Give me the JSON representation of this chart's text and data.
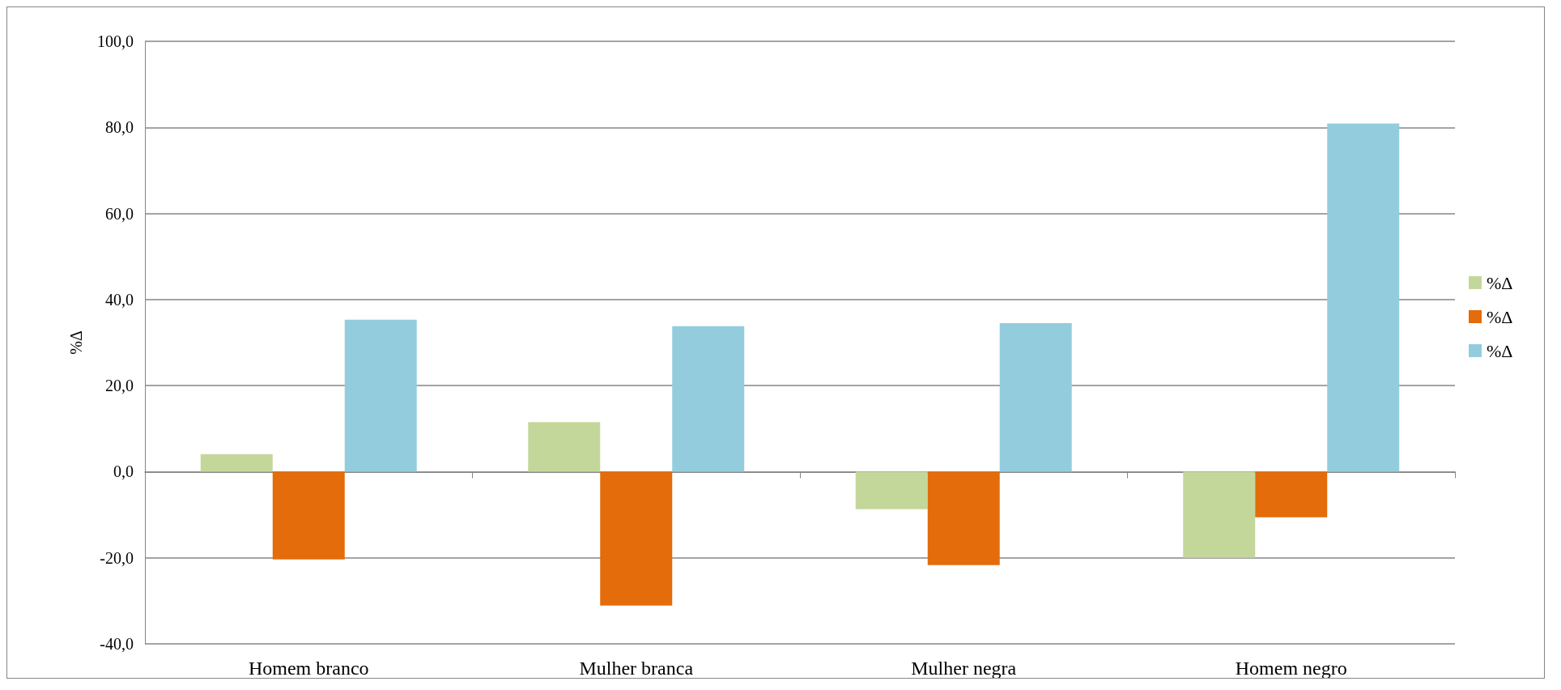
{
  "chart_data": {
    "type": "bar",
    "ylabel": "%Δ",
    "categories": [
      "Homem branco",
      "Mulher branca",
      "Mulher negra",
      "Homem negro"
    ],
    "series": [
      {
        "name": "%Δ",
        "color": "#c4d79b",
        "values": [
          4.1,
          11.5,
          -8.7,
          -20.0
        ]
      },
      {
        "name": "%Δ",
        "color": "#e46c0a",
        "values": [
          -20.4,
          -31.1,
          -21.7,
          -10.6
        ]
      },
      {
        "name": "%Δ",
        "color": "#93cddd",
        "values": [
          35.3,
          33.8,
          34.5,
          80.9
        ]
      }
    ],
    "ylim": [
      -40,
      100
    ],
    "yticks": [
      {
        "value": -40,
        "label": "-40,0"
      },
      {
        "value": -20,
        "label": "-20,0"
      },
      {
        "value": 0,
        "label": "0,0"
      },
      {
        "value": 20,
        "label": "20,0"
      },
      {
        "value": 40,
        "label": "40,0"
      },
      {
        "value": 60,
        "label": "60,0"
      },
      {
        "value": 80,
        "label": "80,0"
      },
      {
        "value": 100,
        "label": "100,0"
      }
    ],
    "grid": "y",
    "legend": "right"
  }
}
